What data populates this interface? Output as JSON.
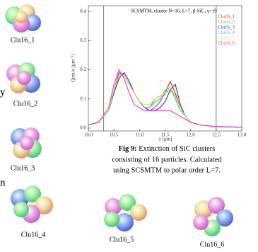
{
  "clusters": [
    "Clu16_1",
    "Clu16_2",
    "Clu16_3",
    "Clu16_4",
    "Clu16_5",
    "Clu16_6"
  ],
  "margin_text": [
    "y",
    "n"
  ],
  "caption": {
    "label": "Fig 9:",
    "lines": [
      "Extinction of SiC clusters",
      "consisting of 16 particles. Calculated",
      "using SCSMTM to polar order L=7."
    ]
  },
  "chart_data": {
    "type": "line",
    "title": "SCSMTM, cluster N=16, L=7, β-SiC, γ=10",
    "x_label": "λ [μm]",
    "y_label": "Qext/a [μm⁻¹]",
    "x": [
      10.0,
      10.2,
      10.4,
      10.5,
      10.6,
      10.7,
      10.8,
      10.9,
      11.0,
      11.1,
      11.2,
      11.3,
      11.4,
      11.5,
      11.6,
      11.7,
      11.8,
      11.9,
      12.0,
      12.2,
      12.5,
      13.0
    ],
    "series": [
      {
        "name": "Clu16_1",
        "color": "#e8202a",
        "values": [
          0.01,
          0.02,
          0.06,
          0.13,
          0.19,
          0.18,
          0.15,
          0.12,
          0.09,
          0.07,
          0.06,
          0.07,
          0.09,
          0.12,
          0.16,
          0.12,
          0.07,
          0.04,
          0.02,
          0.01,
          0.005,
          0.003
        ]
      },
      {
        "name": "Clu16_2",
        "color": "#4fd84a",
        "values": [
          0.01,
          0.02,
          0.06,
          0.13,
          0.18,
          0.19,
          0.16,
          0.12,
          0.09,
          0.07,
          0.07,
          0.1,
          0.11,
          0.12,
          0.13,
          0.11,
          0.07,
          0.04,
          0.02,
          0.01,
          0.005,
          0.003
        ]
      },
      {
        "name": "Clu16_3",
        "color": "#2a2ad8",
        "values": [
          0.01,
          0.02,
          0.06,
          0.12,
          0.17,
          0.19,
          0.16,
          0.12,
          0.09,
          0.07,
          0.06,
          0.06,
          0.07,
          0.09,
          0.13,
          0.15,
          0.08,
          0.04,
          0.02,
          0.01,
          0.005,
          0.003
        ]
      },
      {
        "name": "Clu16_4",
        "color": "#20c8d8",
        "values": [
          0.01,
          0.02,
          0.06,
          0.13,
          0.18,
          0.18,
          0.15,
          0.12,
          0.09,
          0.07,
          0.07,
          0.09,
          0.1,
          0.13,
          0.14,
          0.1,
          0.06,
          0.04,
          0.02,
          0.01,
          0.005,
          0.003
        ]
      },
      {
        "name": "Clu16_5",
        "color": "#e8d82a",
        "values": [
          0.01,
          0.02,
          0.06,
          0.13,
          0.18,
          0.18,
          0.15,
          0.12,
          0.09,
          0.08,
          0.08,
          0.1,
          0.11,
          0.12,
          0.14,
          0.11,
          0.07,
          0.04,
          0.02,
          0.01,
          0.005,
          0.003
        ]
      },
      {
        "name": "Clu16_6",
        "color": "#e830e0",
        "values": [
          0.01,
          0.02,
          0.07,
          0.15,
          0.2,
          0.17,
          0.12,
          0.08,
          0.07,
          0.06,
          0.06,
          0.06,
          0.06,
          0.06,
          0.06,
          0.05,
          0.04,
          0.03,
          0.02,
          0.01,
          0.005,
          0.003
        ]
      }
    ],
    "xlim": [
      10.0,
      13.0
    ],
    "xticks": [
      {
        "value": 10,
        "label": "10.0"
      },
      10.5,
      {
        "value": 11,
        "label": "11.0"
      },
      11.5,
      {
        "value": 12,
        "label": "12.0"
      },
      12.5,
      {
        "value": 13,
        "label": "13.0"
      }
    ],
    "ylim": [
      -0.01,
      0.42
    ],
    "yticks": [
      {
        "value": 0,
        "label": "0.0"
      },
      0.1,
      0.2,
      0.3,
      0.4
    ],
    "vlines": [
      10.3,
      12.5
    ],
    "legend": "upper-right"
  }
}
